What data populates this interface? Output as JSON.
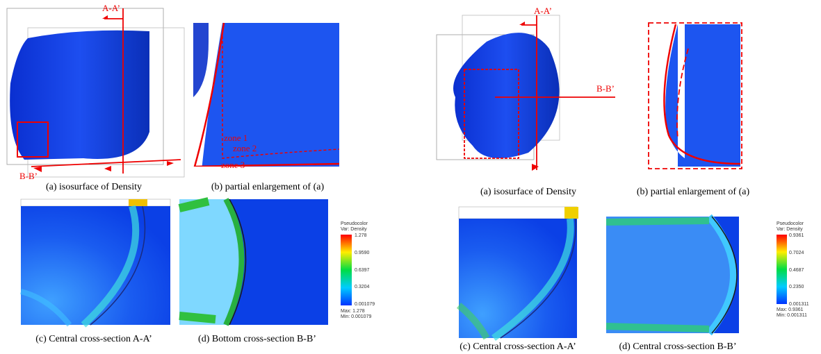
{
  "left": {
    "labels": {
      "aa": "A-A’",
      "bb": "B-B’",
      "zone1": "zone 1",
      "zone2": "zone 2",
      "zone3": "zone 3"
    },
    "captions": [
      "(a) isosurface of Density",
      "(b) partial enlargement of (a)",
      "(c) Central cross-section A-A’",
      "(d) Bottom cross-section B-B’"
    ],
    "colorbar": {
      "title": "Pseudocolor",
      "var": "Var: Density",
      "ticks": [
        "1.278",
        "0.9590",
        "0.6397",
        "0.3204",
        "0.001079"
      ],
      "max": "Max: 1.278",
      "min": "Min: 0.001079"
    }
  },
  "right": {
    "labels": {
      "aa": "A-A’",
      "bb": "B-B’"
    },
    "captions": [
      "(a) isosurface of Density",
      "(b) partial enlargement of (a)",
      "(c) Central cross-section A-A’",
      "(d) Central  cross-section B-B’"
    ],
    "colorbar": {
      "title": "Pseudocolor",
      "var": "Var: Density",
      "ticks": [
        "0.9361",
        "0.7024",
        "0.4687",
        "0.2350",
        "0.001311"
      ],
      "max": "Max: 0.9361",
      "min": "Min: 0.001311"
    }
  }
}
